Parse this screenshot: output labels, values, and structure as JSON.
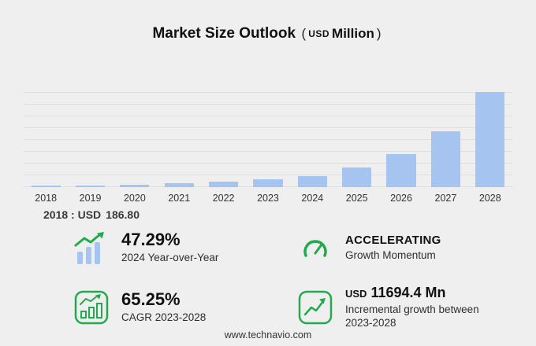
{
  "title": {
    "main": "Market Size Outlook",
    "open_paren": "(",
    "currency": "USD",
    "unit": "Million",
    "close_paren": ")"
  },
  "chart_data": {
    "type": "bar",
    "title": "Market Size Outlook (USD Million)",
    "categories": [
      "2018",
      "2019",
      "2020",
      "2021",
      "2022",
      "2023",
      "2024",
      "2025",
      "2026",
      "2027",
      "2028"
    ],
    "values": [
      186.8,
      263,
      370,
      521,
      733,
      1032.7,
      1521.1,
      2590,
      4400,
      7480,
      12727.1
    ],
    "xlabel": "",
    "ylabel": "",
    "ylim": [
      0,
      13000
    ],
    "grid": "horizontal",
    "legend": "none",
    "bar_color": "#a6c4f0"
  },
  "annotation": {
    "base_year_label": "2018 : USD",
    "base_year_value": "186.80"
  },
  "stats": [
    {
      "icon": "bar-chart-up-arrow-icon",
      "value": "47.29%",
      "label": "2024 Year-over-Year"
    },
    {
      "icon": "gauge-icon",
      "title": "ACCELERATING",
      "label": "Growth Momentum"
    },
    {
      "icon": "framed-bar-chart-icon",
      "value": "65.25%",
      "label": "CAGR 2023-2028"
    },
    {
      "icon": "framed-line-chart-icon",
      "currency": "USD",
      "value": "11694.4 Mn",
      "label": "Incremental growth between 2023-2028"
    }
  ],
  "footer": {
    "url": "www.technavio.com"
  },
  "colors": {
    "accent_green": "#23a94e",
    "bar_blue": "#a6c4f0",
    "background": "#efefef",
    "text_dark": "#111111"
  }
}
